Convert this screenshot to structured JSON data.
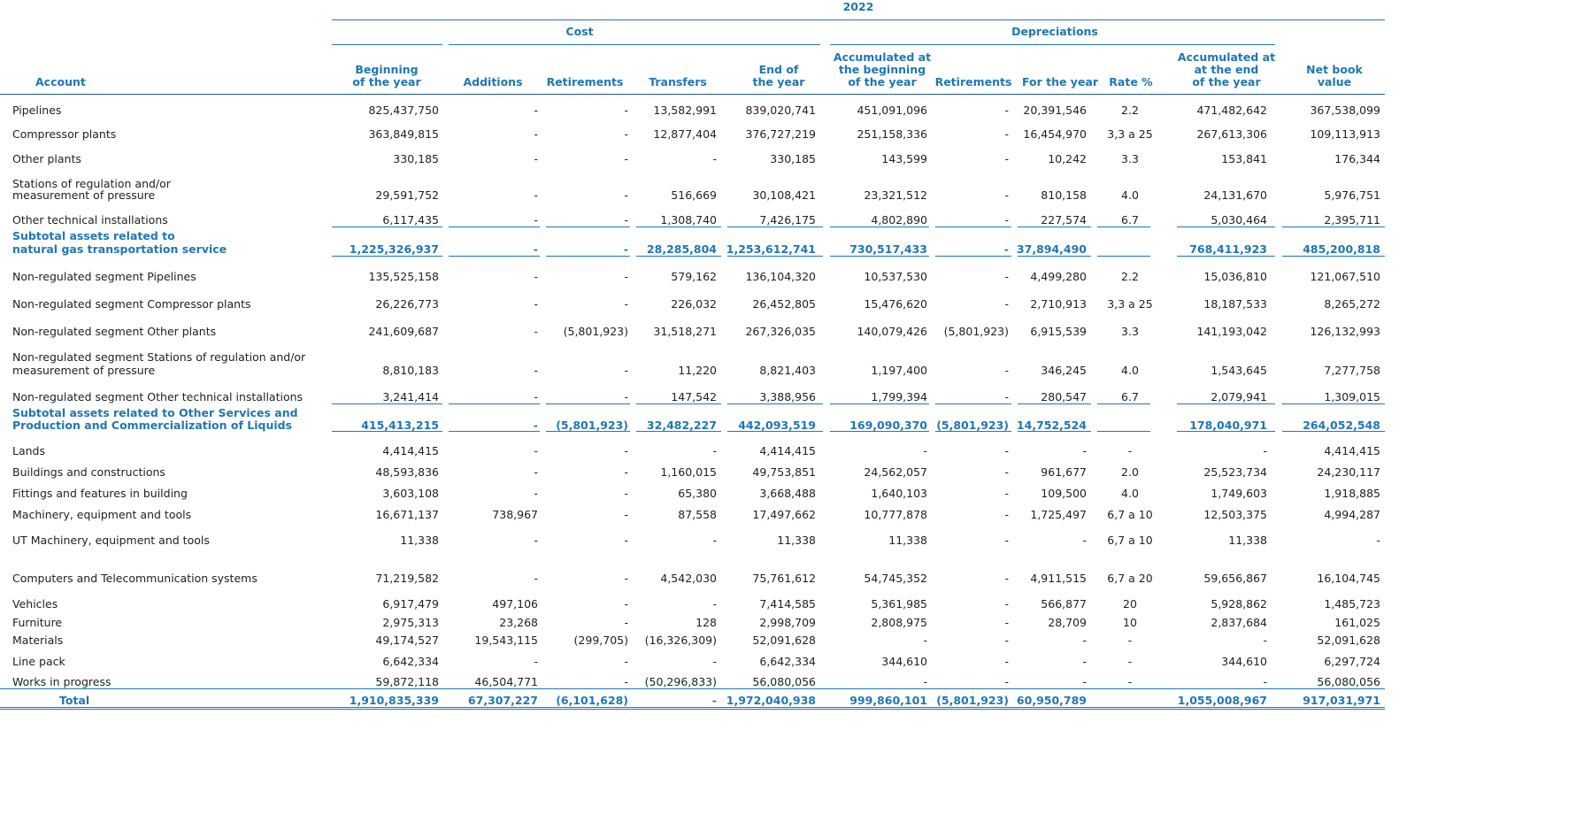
{
  "header": {
    "year": "2022",
    "cost": "Cost",
    "depreciations": "Depreciations",
    "account": "Account",
    "cols": [
      [
        "Beginning",
        "of the year"
      ],
      [
        "",
        "Additions"
      ],
      [
        "",
        "Retirements"
      ],
      [
        "",
        "Transfers"
      ],
      [
        "End of",
        "the year"
      ],
      [
        "Accumulated at",
        "the beginning",
        "of the year"
      ],
      [
        "",
        "Retirements"
      ],
      [
        "",
        "For the year"
      ],
      [
        "",
        "Rate %"
      ],
      [
        "Accumulated at",
        "at the end",
        "of the year"
      ],
      [
        "Net book",
        "value"
      ]
    ]
  },
  "rows": [
    {
      "label": [
        "Pipelines"
      ],
      "v": [
        "825,437,750",
        "-",
        "-",
        "13,582,991",
        "839,020,741",
        "451,091,096",
        "-",
        "20,391,546",
        "2.2",
        "471,482,642",
        "367,538,099"
      ]
    },
    {
      "label": [
        "Compressor plants"
      ],
      "v": [
        "363,849,815",
        "-",
        "-",
        "12,877,404",
        "376,727,219",
        "251,158,336",
        "-",
        "16,454,970",
        "3,3 a 25",
        "267,613,306",
        "109,113,913"
      ]
    },
    {
      "label": [
        "Other plants"
      ],
      "v": [
        "330,185",
        "-",
        "-",
        "-",
        "330,185",
        "143,599",
        "-",
        "10,242",
        "3.3",
        "153,841",
        "176,344"
      ]
    },
    {
      "label": [
        "Stations of regulation and/or",
        "measurement of pressure"
      ],
      "v": [
        "29,591,752",
        "-",
        "-",
        "516,669",
        "30,108,421",
        "23,321,512",
        "-",
        "810,158",
        "4.0",
        "24,131,670",
        "5,976,751"
      ]
    },
    {
      "label": [
        "Other technical installations"
      ],
      "v": [
        "6,117,435",
        "-",
        "-",
        "1,308,740",
        "7,426,175",
        "4,802,890",
        "-",
        "227,574",
        "6.7",
        "5,030,464",
        "2,395,711"
      ]
    },
    {
      "label": [
        "Subtotal assets related to",
        "natural gas transportation service"
      ],
      "subtotal": true,
      "v": [
        "1,225,326,937",
        "-",
        "-",
        "28,285,804",
        "1,253,612,741",
        "730,517,433",
        "-",
        "37,894,490",
        "",
        "768,411,923",
        "485,200,818"
      ]
    },
    {
      "label": [
        "Non-regulated segment Pipelines"
      ],
      "v": [
        "135,525,158",
        "-",
        "-",
        "579,162",
        "136,104,320",
        "10,537,530",
        "-",
        "4,499,280",
        "2.2",
        "15,036,810",
        "121,067,510"
      ]
    },
    {
      "label": [
        "Non-regulated segment Compressor plants"
      ],
      "v": [
        "26,226,773",
        "-",
        "-",
        "226,032",
        "26,452,805",
        "15,476,620",
        "-",
        "2,710,913",
        "3,3 a 25",
        "18,187,533",
        "8,265,272"
      ]
    },
    {
      "label": [
        "Non-regulated segment Other plants"
      ],
      "v": [
        "241,609,687",
        "-",
        "(5,801,923)",
        "31,518,271",
        "267,326,035",
        "140,079,426",
        "(5,801,923)",
        "6,915,539",
        "3.3",
        "141,193,042",
        "126,132,993"
      ]
    },
    {
      "label": [
        "Non-regulated segment Stations of regulation and/or",
        "measurement of pressure"
      ],
      "v": [
        "8,810,183",
        "-",
        "-",
        "11,220",
        "8,821,403",
        "1,197,400",
        "-",
        "346,245",
        "4.0",
        "1,543,645",
        "7,277,758"
      ]
    },
    {
      "label": [
        "Non-regulated segment Other technical installations"
      ],
      "v": [
        "3,241,414",
        "-",
        "-",
        "147,542",
        "3,388,956",
        "1,799,394",
        "-",
        "280,547",
        "6.7",
        "2,079,941",
        "1,309,015"
      ]
    },
    {
      "label": [
        "Subtotal assets related to Other Services and",
        "Production and Commercialization of Liquids"
      ],
      "subtotal": true,
      "v": [
        "415,413,215",
        "-",
        "(5,801,923)",
        "32,482,227",
        "442,093,519",
        "169,090,370",
        "(5,801,923)",
        "14,752,524",
        "",
        "178,040,971",
        "264,052,548"
      ]
    },
    {
      "label": [
        "Lands"
      ],
      "v": [
        "4,414,415",
        "-",
        "-",
        "-",
        "4,414,415",
        "-",
        "-",
        "-",
        "-",
        "-",
        "4,414,415"
      ]
    },
    {
      "label": [
        "Buildings and constructions"
      ],
      "v": [
        "48,593,836",
        "-",
        "-",
        "1,160,015",
        "49,753,851",
        "24,562,057",
        "-",
        "961,677",
        "2.0",
        "25,523,734",
        "24,230,117"
      ]
    },
    {
      "label": [
        "Fittings and features in building"
      ],
      "v": [
        "3,603,108",
        "-",
        "-",
        "65,380",
        "3,668,488",
        "1,640,103",
        "-",
        "109,500",
        "4.0",
        "1,749,603",
        "1,918,885"
      ]
    },
    {
      "label": [
        "Machinery, equipment and tools"
      ],
      "v": [
        "16,671,137",
        "738,967",
        "-",
        "87,558",
        "17,497,662",
        "10,777,878",
        "-",
        "1,725,497",
        "6,7 a 10",
        "12,503,375",
        "4,994,287"
      ]
    },
    {
      "label": [
        "UT Machinery, equipment and tools"
      ],
      "v": [
        "11,338",
        "-",
        "-",
        "-",
        "11,338",
        "11,338",
        "-",
        "-",
        "6,7 a 10",
        "11,338",
        "-"
      ]
    },
    {
      "label": [
        "Computers and Telecommunication systems"
      ],
      "v": [
        "71,219,582",
        "-",
        "-",
        "4,542,030",
        "75,761,612",
        "54,745,352",
        "-",
        "4,911,515",
        "6,7 a 20",
        "59,656,867",
        "16,104,745"
      ]
    },
    {
      "label": [
        "Vehicles"
      ],
      "v": [
        "6,917,479",
        "497,106",
        "-",
        "-",
        "7,414,585",
        "5,361,985",
        "-",
        "566,877",
        "20",
        "5,928,862",
        "1,485,723"
      ]
    },
    {
      "label": [
        "Furniture"
      ],
      "v": [
        "2,975,313",
        "23,268",
        "-",
        "128",
        "2,998,709",
        "2,808,975",
        "-",
        "28,709",
        "10",
        "2,837,684",
        "161,025"
      ]
    },
    {
      "label": [
        "Materials"
      ],
      "v": [
        "49,174,527",
        "19,543,115",
        "(299,705)",
        "(16,326,309)",
        "52,091,628",
        "-",
        "-",
        "-",
        "-",
        "-",
        "52,091,628"
      ]
    },
    {
      "label": [
        "Line pack"
      ],
      "v": [
        "6,642,334",
        "-",
        "-",
        "-",
        "6,642,334",
        "344,610",
        "-",
        "-",
        "-",
        "344,610",
        "6,297,724"
      ]
    },
    {
      "label": [
        "Works in progress"
      ],
      "v": [
        "59,872,118",
        "46,504,771",
        "-",
        "(50,296,833)",
        "56,080,056",
        "-",
        "-",
        "-",
        "-",
        "-",
        "56,080,056"
      ]
    },
    {
      "label": [
        "Total"
      ],
      "total": true,
      "v": [
        "1,910,835,339",
        "67,307,227",
        "(6,101,628)",
        "-",
        "1,972,040,938",
        "999,860,101",
        "(5,801,923)",
        "60,950,789",
        "",
        "1,055,008,967",
        "917,031,971"
      ]
    }
  ]
}
